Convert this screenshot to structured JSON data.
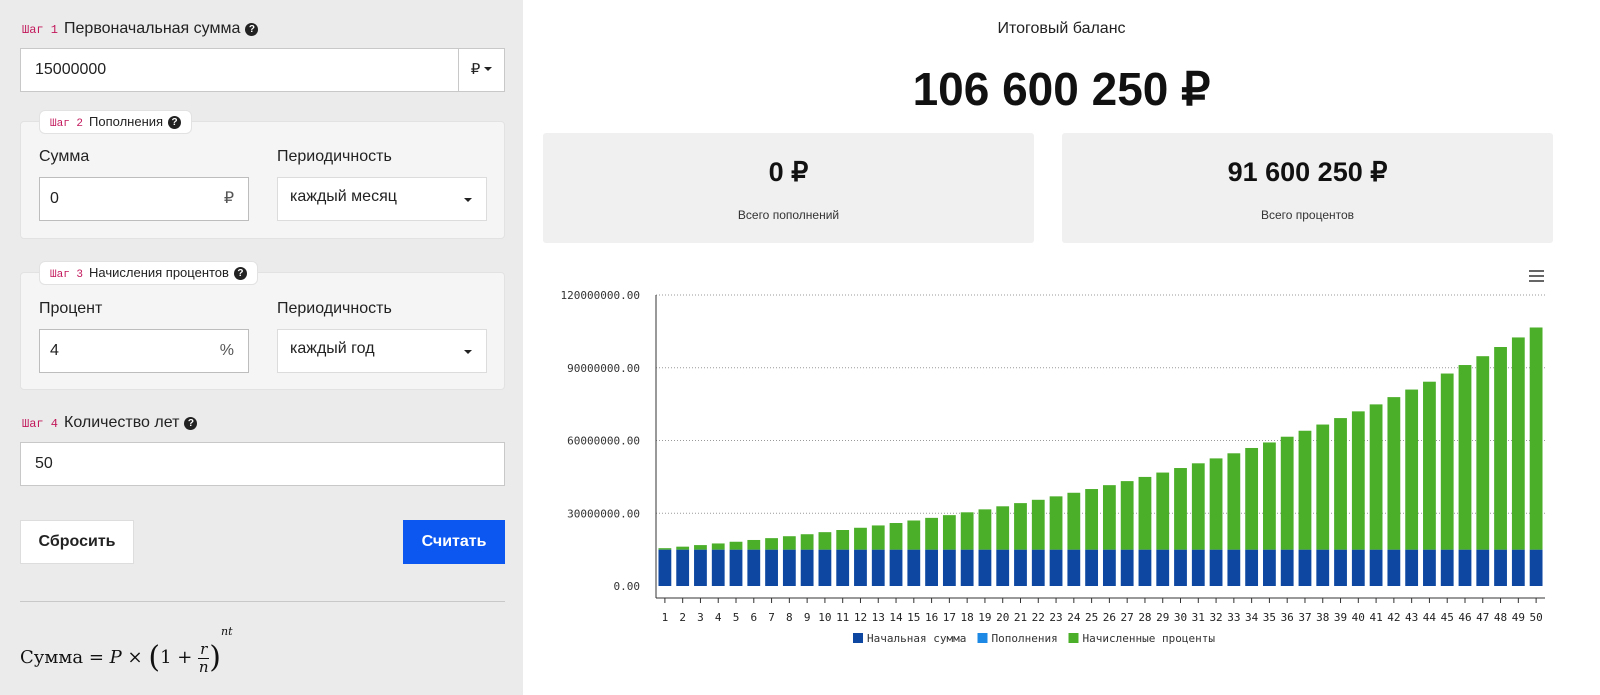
{
  "steps": {
    "step1": {
      "tag": "Шаг 1",
      "title": "Первоначальная сумма",
      "value": "15000000",
      "currency": "₽"
    },
    "step2": {
      "tag": "Шаг 2",
      "title": "Пополнения",
      "amount_label": "Сумма",
      "amount_value": "0",
      "amount_suffix": "₽",
      "period_label": "Периодичность",
      "period_value": "каждый месяц"
    },
    "step3": {
      "tag": "Шаг 3",
      "title": "Начисления процентов",
      "percent_label": "Процент",
      "percent_value": "4",
      "percent_suffix": "%",
      "period_label": "Периодичность",
      "period_value": "каждый год"
    },
    "step4": {
      "tag": "Шаг 4",
      "title": "Количество лет",
      "value": "50"
    }
  },
  "buttons": {
    "reset": "Сбросить",
    "calculate": "Считать"
  },
  "formula": {
    "lhs": "Сумма",
    "p": "P",
    "times": "×",
    "one": "1",
    "plus": "+",
    "r": "r",
    "n": "n",
    "exp": "nt"
  },
  "summary": {
    "balance_title": "Итоговый баланс",
    "balance_value": "106 600 250 ₽",
    "deposits_value": "0 ₽",
    "deposits_label": "Всего пополнений",
    "interest_value": "91 600 250 ₽",
    "interest_label": "Всего процентов"
  },
  "icons": {
    "help": "question-circle-icon",
    "menu": "hamburger-menu-icon",
    "dropdown": "caret-down-icon"
  },
  "colors": {
    "accent": "#0b57f0",
    "initial": "#0d47a1",
    "deposits": "#1e88e5",
    "interest": "#4caf2a"
  },
  "chart_data": {
    "type": "bar",
    "stacked": true,
    "categories": [
      "1",
      "2",
      "3",
      "4",
      "5",
      "6",
      "7",
      "8",
      "9",
      "10",
      "11",
      "12",
      "13",
      "14",
      "15",
      "16",
      "17",
      "18",
      "19",
      "20",
      "21",
      "22",
      "23",
      "24",
      "25",
      "26",
      "27",
      "28",
      "29",
      "30",
      "31",
      "32",
      "33",
      "34",
      "35",
      "36",
      "37",
      "38",
      "39",
      "40",
      "41",
      "42",
      "43",
      "44",
      "45",
      "46",
      "47",
      "48",
      "49",
      "50"
    ],
    "ylim": [
      0,
      120000000
    ],
    "yticks": [
      "0.00",
      "30000000.00",
      "60000000.00",
      "90000000.00",
      "120000000.00"
    ],
    "grid": true,
    "legend": "bottom",
    "series": [
      {
        "name": "Начальная сумма",
        "color": "#0d47a1",
        "values": [
          15000000,
          15000000,
          15000000,
          15000000,
          15000000,
          15000000,
          15000000,
          15000000,
          15000000,
          15000000,
          15000000,
          15000000,
          15000000,
          15000000,
          15000000,
          15000000,
          15000000,
          15000000,
          15000000,
          15000000,
          15000000,
          15000000,
          15000000,
          15000000,
          15000000,
          15000000,
          15000000,
          15000000,
          15000000,
          15000000,
          15000000,
          15000000,
          15000000,
          15000000,
          15000000,
          15000000,
          15000000,
          15000000,
          15000000,
          15000000,
          15000000,
          15000000,
          15000000,
          15000000,
          15000000,
          15000000,
          15000000,
          15000000,
          15000000,
          15000000
        ]
      },
      {
        "name": "Пополнения",
        "color": "#1e88e5",
        "values": [
          0,
          0,
          0,
          0,
          0,
          0,
          0,
          0,
          0,
          0,
          0,
          0,
          0,
          0,
          0,
          0,
          0,
          0,
          0,
          0,
          0,
          0,
          0,
          0,
          0,
          0,
          0,
          0,
          0,
          0,
          0,
          0,
          0,
          0,
          0,
          0,
          0,
          0,
          0,
          0,
          0,
          0,
          0,
          0,
          0,
          0,
          0,
          0,
          0,
          0
        ]
      },
      {
        "name": "Начисленные проценты",
        "color": "#4caf2a",
        "values": [
          600000,
          1224000,
          1872960,
          2547878,
          3249793,
          3979785,
          4738976,
          5528535,
          6349676,
          7203663,
          8091809,
          9015481,
          9976100,
          10975144,
          12014150,
          13094716,
          14218505,
          15387245,
          16602735,
          17866844,
          19181518,
          20548779,
          21970730,
          23449559,
          24987541,
          26587043,
          28250525,
          29980546,
          31779768,
          33650959,
          35597000,
          37620880,
          39725715,
          41914744,
          44191334,
          46558987,
          49021346,
          51582200,
          54245488,
          57015308,
          59895920,
          62891757,
          66007427,
          69247724,
          72617633,
          76122338,
          79767232,
          83557921,
          87500238,
          91600250
        ]
      }
    ]
  }
}
